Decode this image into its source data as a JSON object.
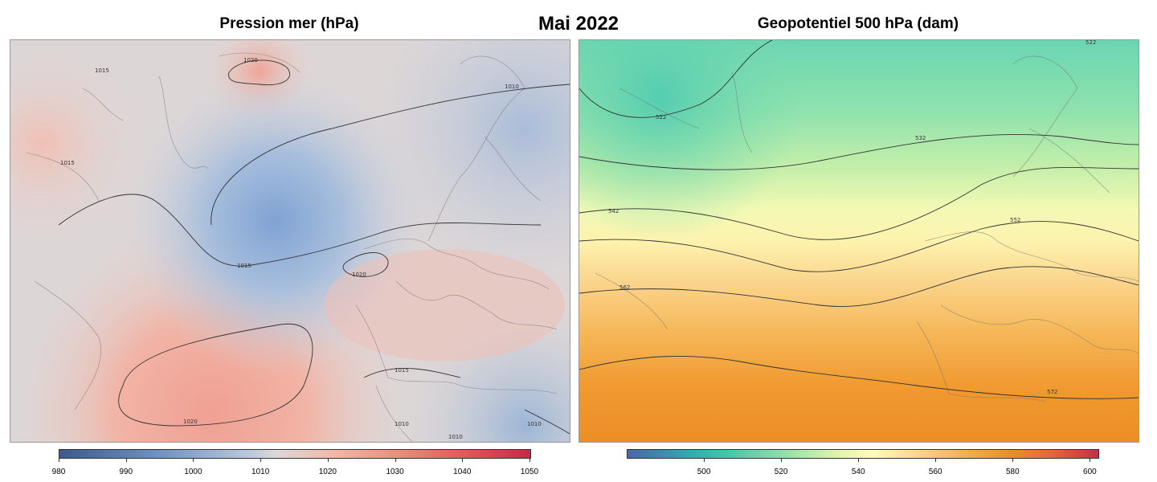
{
  "main_title": "Mai 2022",
  "left_panel": {
    "title": "Pression mer (hPa)",
    "contour_labels": [
      "1020",
      "1015",
      "1010",
      "1015",
      "1015",
      "1020",
      "1020",
      "1015",
      "1010",
      "1010",
      "1010"
    ],
    "colorbar": {
      "min": 980,
      "max": 1050,
      "ticks": [
        "980",
        "990",
        "1000",
        "1010",
        "1020",
        "1030",
        "1040",
        "1050"
      ]
    }
  },
  "right_panel": {
    "title": "Geopotentiel 500 hPa (dam)",
    "contour_labels": [
      "522",
      "532",
      "522",
      "542",
      "552",
      "562",
      "572"
    ],
    "colorbar": {
      "min": 480,
      "max": 602,
      "ticks": [
        "500",
        "520",
        "540",
        "560",
        "580",
        "600"
      ]
    }
  }
}
